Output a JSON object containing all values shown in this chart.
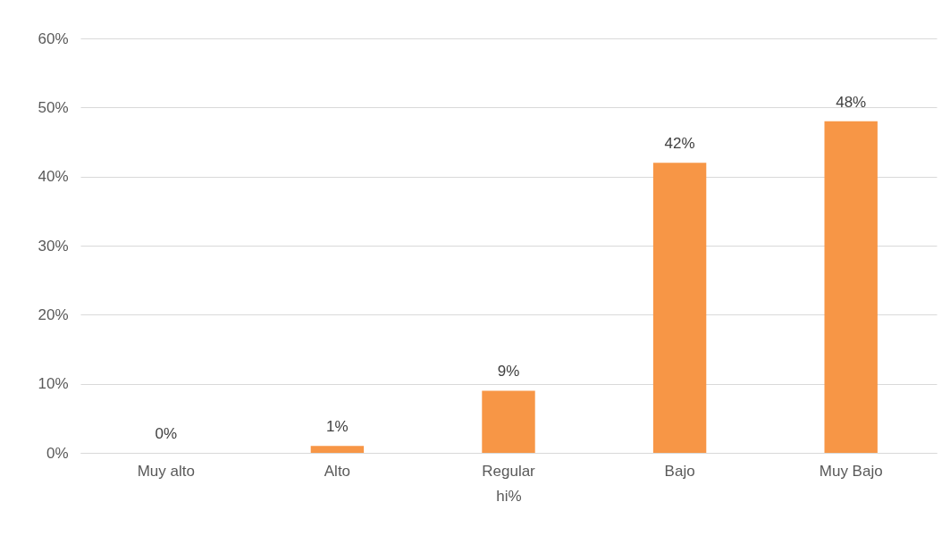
{
  "chart_data": {
    "type": "bar",
    "xlabel": "hi%",
    "categories": [
      "Muy alto",
      "Alto",
      "Regular",
      "Bajo",
      "Muy Bajo"
    ],
    "values": [
      0,
      1,
      9,
      42,
      48
    ],
    "value_labels": [
      "0%",
      "1%",
      "9%",
      "42%",
      "48%"
    ],
    "color": "#f79646",
    "ylim": [
      0,
      60
    ],
    "yticks": [
      {
        "value": 0,
        "label": "0%"
      },
      {
        "value": 10,
        "label": "10%"
      },
      {
        "value": 20,
        "label": "20%"
      },
      {
        "value": 30,
        "label": "30%"
      },
      {
        "value": 40,
        "label": "40%"
      },
      {
        "value": 50,
        "label": "50%"
      },
      {
        "value": 60,
        "label": "60%"
      }
    ],
    "grid": "y"
  }
}
